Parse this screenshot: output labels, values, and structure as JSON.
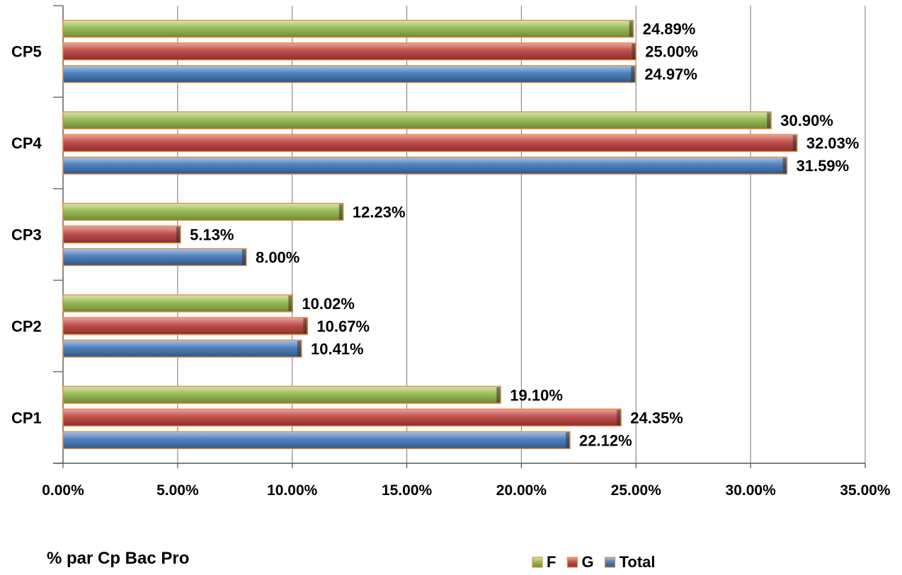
{
  "chart_data": {
    "type": "bar",
    "orientation": "horizontal",
    "categories": [
      "CP1",
      "CP2",
      "CP3",
      "CP4",
      "CP5"
    ],
    "series": [
      {
        "name": "F",
        "color": "#9BBB59",
        "values": [
          19.1,
          10.02,
          12.23,
          30.9,
          24.89
        ],
        "labels": [
          "19.10%",
          "10.02%",
          "12.23%",
          "30.90%",
          "24.89%"
        ]
      },
      {
        "name": "G",
        "color": "#C0504D",
        "values": [
          24.35,
          10.67,
          5.13,
          32.03,
          25.0
        ],
        "labels": [
          "24.35%",
          "10.67%",
          "5.13%",
          "32.03%",
          "25.00%"
        ]
      },
      {
        "name": "Total",
        "color": "#4F81BD",
        "values": [
          22.12,
          10.41,
          8.0,
          31.59,
          24.97
        ],
        "labels": [
          "22.12%",
          "10.41%",
          "8.00%",
          "31.59%",
          "24.97%"
        ]
      }
    ],
    "xlim": [
      0,
      35
    ],
    "xticks": [
      "0.00%",
      "5.00%",
      "10.00%",
      "15.00%",
      "20.00%",
      "25.00%",
      "30.00%",
      "35.00%"
    ],
    "xtick_values": [
      0,
      5,
      10,
      15,
      20,
      25,
      30,
      35
    ],
    "grid": true,
    "legend_position": "bottom-right",
    "caption": "% par Cp Bac Pro"
  }
}
